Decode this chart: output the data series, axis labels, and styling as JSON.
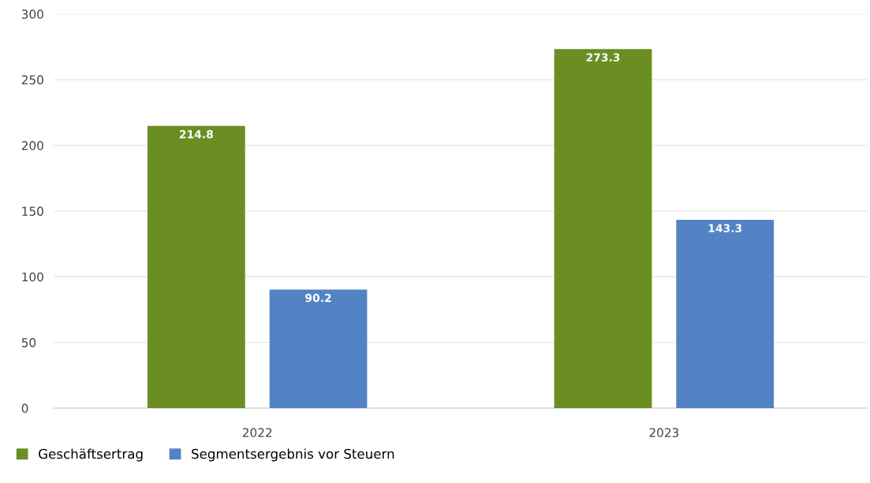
{
  "chart_data": {
    "type": "bar",
    "categories": [
      "2022",
      "2023"
    ],
    "series": [
      {
        "name": "Geschäftsertrag",
        "color": "#6b8e23",
        "values": [
          214.8,
          273.3
        ]
      },
      {
        "name": "Segmentsergebnis vor Steuern",
        "color": "#5283c4",
        "values": [
          90.2,
          143.3
        ]
      }
    ],
    "ylim": [
      0,
      300
    ],
    "yticks": [
      0,
      50,
      100,
      150,
      200,
      250,
      300
    ],
    "grid": "y",
    "legend": "bottom",
    "data_labels": true
  }
}
